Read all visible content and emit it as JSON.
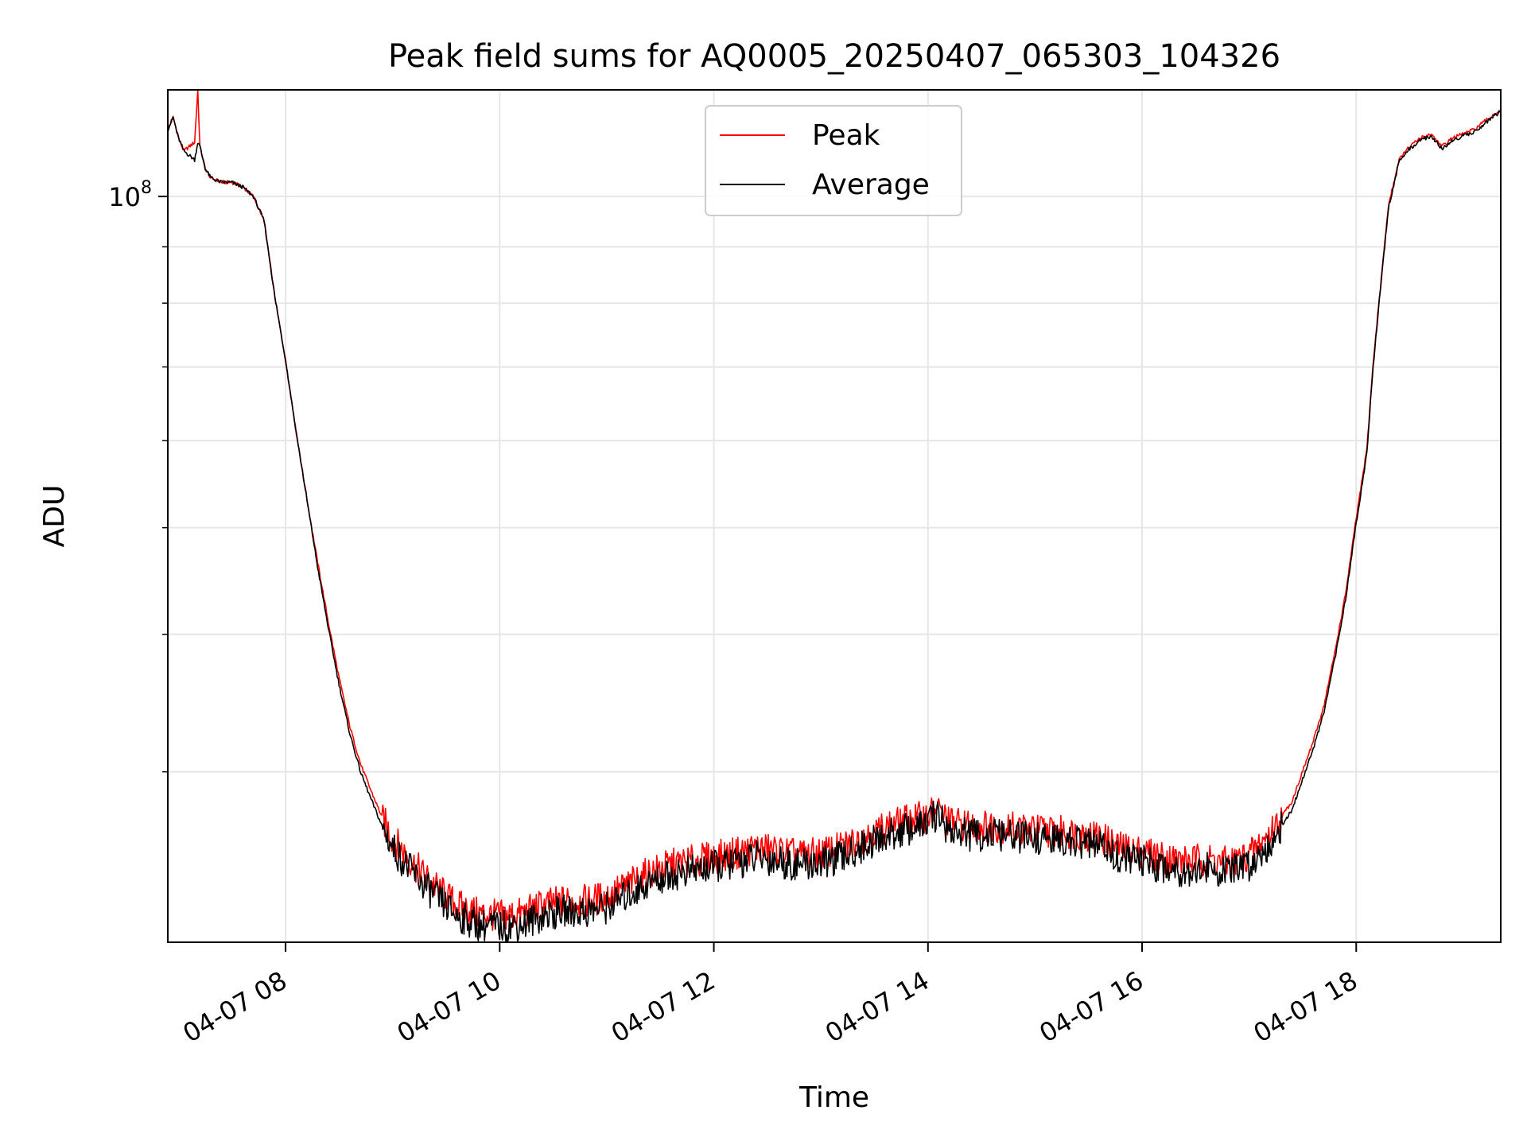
{
  "chart_data": {
    "type": "line",
    "title": "Peak field sums for AQ0005_20250407_065303_104326",
    "xlabel": "Time",
    "ylabel": "ADU",
    "x_unit": "hours of 2025-04-07",
    "xlim": [
      6.9,
      19.35
    ],
    "ylim": [
      21000000,
      125000000
    ],
    "y_scale": "log",
    "grid": true,
    "legend_position": "top-center",
    "x_ticks": [
      {
        "value": 8,
        "label": "04-07 08"
      },
      {
        "value": 10,
        "label": "04-07 10"
      },
      {
        "value": 12,
        "label": "04-07 12"
      },
      {
        "value": 14,
        "label": "04-07 14"
      },
      {
        "value": 16,
        "label": "04-07 16"
      },
      {
        "value": 18,
        "label": "04-07 18"
      }
    ],
    "y_major_ticks": [
      {
        "value": 100000000,
        "base": "10",
        "exponent": "8"
      }
    ],
    "y_minor_ticks": [
      30000000,
      40000000,
      50000000,
      60000000,
      70000000,
      80000000,
      90000000
    ],
    "series": [
      {
        "name": "Peak",
        "color": "#ff0000",
        "x": [
          6.9,
          6.95,
          7.0,
          7.05,
          7.15,
          7.18,
          7.2,
          7.25,
          7.3,
          7.4,
          7.5,
          7.6,
          7.7,
          7.8,
          7.9,
          8.0,
          8.1,
          8.2,
          8.3,
          8.4,
          8.5,
          8.6,
          8.7,
          8.8,
          8.9,
          9.0,
          9.2,
          9.4,
          9.6,
          9.8,
          10.0,
          10.2,
          10.4,
          10.6,
          10.8,
          11.0,
          11.2,
          11.4,
          11.6,
          11.8,
          12.0,
          12.2,
          12.4,
          12.6,
          12.8,
          13.0,
          13.2,
          13.4,
          13.6,
          13.8,
          13.95,
          14.1,
          14.2,
          14.4,
          14.6,
          14.8,
          15.0,
          15.2,
          15.4,
          15.6,
          15.8,
          16.0,
          16.2,
          16.4,
          16.6,
          16.8,
          17.0,
          17.2,
          17.4,
          17.6,
          17.7,
          17.8,
          17.9,
          18.0,
          18.1,
          18.15,
          18.2,
          18.3,
          18.4,
          18.5,
          18.6,
          18.7,
          18.8,
          18.9,
          19.0,
          19.1,
          19.2,
          19.3,
          19.35
        ],
        "y": [
          115000000,
          118000000,
          113000000,
          110000000,
          112000000,
          125000000,
          111000000,
          106000000,
          104000000,
          103000000,
          103000000,
          102000000,
          100000000,
          95000000,
          81000000,
          71000000,
          61000000,
          53000000,
          46500000,
          41000000,
          36500000,
          33000000,
          30500000,
          28800000,
          27300000,
          26100000,
          24700000,
          23600000,
          22700000,
          22300000,
          22200000,
          22300000,
          22700000,
          22900000,
          22900000,
          23100000,
          23700000,
          24300000,
          24700000,
          24900000,
          25100000,
          25300000,
          25600000,
          25400000,
          25200000,
          25300000,
          25600000,
          26200000,
          26700000,
          27100000,
          27300000,
          27700000,
          27000000,
          26800000,
          26800000,
          26700000,
          26600000,
          26500000,
          26400000,
          26200000,
          25600000,
          25400000,
          25100000,
          24900000,
          25000000,
          24800000,
          25200000,
          26400000,
          28200000,
          32000000,
          34500000,
          38500000,
          43500000,
          51000000,
          59000000,
          69000000,
          78000000,
          98000000,
          108000000,
          111000000,
          113000000,
          114000000,
          111000000,
          113000000,
          114000000,
          115000000,
          117000000,
          119000000,
          120000000
        ]
      },
      {
        "name": "Average",
        "color": "#000000",
        "x": [
          6.9,
          6.95,
          7.0,
          7.05,
          7.15,
          7.18,
          7.2,
          7.25,
          7.3,
          7.4,
          7.5,
          7.6,
          7.7,
          7.8,
          7.9,
          8.0,
          8.1,
          8.2,
          8.3,
          8.4,
          8.5,
          8.6,
          8.7,
          8.8,
          8.9,
          9.0,
          9.2,
          9.4,
          9.6,
          9.8,
          10.0,
          10.2,
          10.4,
          10.6,
          10.8,
          11.0,
          11.2,
          11.4,
          11.6,
          11.8,
          12.0,
          12.2,
          12.4,
          12.6,
          12.8,
          13.0,
          13.2,
          13.4,
          13.6,
          13.8,
          13.95,
          14.1,
          14.2,
          14.4,
          14.6,
          14.8,
          15.0,
          15.2,
          15.4,
          15.6,
          15.8,
          16.0,
          16.2,
          16.4,
          16.6,
          16.8,
          17.0,
          17.2,
          17.4,
          17.6,
          17.7,
          17.8,
          17.9,
          18.0,
          18.1,
          18.15,
          18.2,
          18.3,
          18.4,
          18.5,
          18.6,
          18.7,
          18.8,
          18.9,
          19.0,
          19.1,
          19.2,
          19.3,
          19.35
        ],
        "y": [
          115000000,
          118000000,
          113000000,
          110000000,
          108000000,
          112000000,
          111000000,
          106000000,
          104000000,
          103000000,
          103000000,
          102000000,
          100000000,
          95000000,
          81000000,
          71000000,
          61000000,
          53000000,
          46000000,
          40500000,
          36000000,
          32500000,
          30000000,
          28300000,
          26800000,
          25600000,
          24200000,
          23100000,
          22200000,
          21800000,
          21700000,
          21800000,
          22200000,
          22400000,
          22400000,
          22600000,
          23200000,
          23800000,
          24200000,
          24400000,
          24600000,
          24800000,
          25100000,
          24900000,
          24700000,
          24800000,
          25100000,
          25700000,
          26200000,
          26600000,
          26800000,
          27500000,
          26500000,
          26300000,
          26300000,
          26200000,
          26100000,
          26000000,
          25900000,
          25700000,
          25100000,
          24900000,
          24600000,
          24400000,
          24500000,
          24300000,
          24700000,
          25900000,
          27700000,
          31500000,
          34000000,
          38000000,
          43000000,
          50500000,
          58500000,
          68500000,
          77500000,
          97500000,
          107500000,
          110500000,
          112500000,
          113500000,
          110500000,
          112500000,
          113500000,
          114500000,
          116500000,
          118500000,
          119500000
        ]
      }
    ]
  }
}
